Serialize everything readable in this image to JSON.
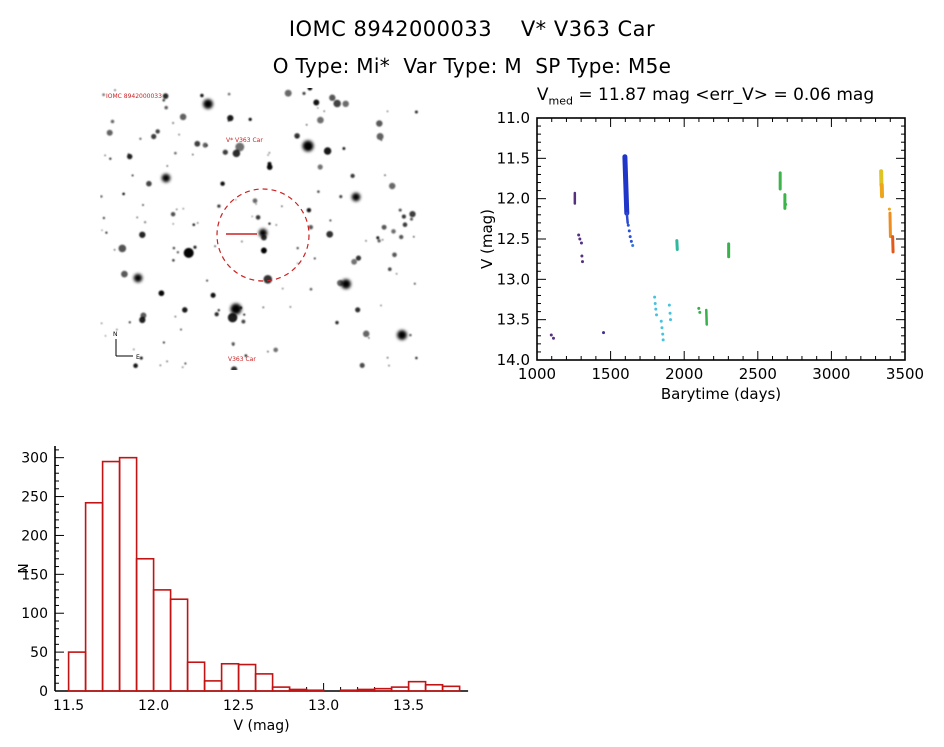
{
  "header": {
    "title": "IOMC 8942000033    V* V363 Car",
    "subtitle": "O Type: Mi*  Var Type: M  SP Type: M5e"
  },
  "finder": {
    "label_top_left": "IOMC 8942000033",
    "label_target": "V* V363 Car",
    "label_bottom": "V363 Car",
    "compass_n": "N",
    "compass_e": "E",
    "circle_color": "#cc2222",
    "seed": 20,
    "star_count": 175,
    "large_stars": [
      [
        66,
        90
      ],
      [
        108,
        16
      ],
      [
        136,
        221
      ],
      [
        256,
        109
      ],
      [
        302,
        247
      ],
      [
        208,
        58
      ],
      [
        38,
        190
      ],
      [
        246,
        196
      ]
    ]
  },
  "chart_data": [
    {
      "type": "scatter",
      "title_v": "V",
      "title_sub": "med",
      "title_rest": " = 11.87 mag <err_V> = 0.06 mag",
      "xlabel": "Barytime (days)",
      "ylabel": "V (mag)",
      "xlim": [
        1000,
        3500
      ],
      "ylim_top": 11.0,
      "ylim_bottom": 14.0,
      "xticks": [
        1000,
        1500,
        2000,
        2500,
        3000,
        3500
      ],
      "yticks": [
        "11.0",
        "11.5",
        "12.0",
        "12.5",
        "13.0",
        "13.5",
        "14.0"
      ],
      "x_minor_step": 100,
      "y_minor_step": 0.1,
      "segments": [
        {
          "x1": 1597,
          "y1": 11.48,
          "x2": 1610,
          "y2": 12.18,
          "c": "#2036c8",
          "w": 5
        },
        {
          "x1": 1610,
          "y1": 12.18,
          "x2": 1616,
          "y2": 12.3,
          "c": "#2a48d0",
          "w": 2.5
        },
        {
          "x1": 1257,
          "y1": 11.93,
          "x2": 1257,
          "y2": 12.06,
          "c": "#55307f",
          "w": 2.5
        },
        {
          "x1": 1950,
          "y1": 12.52,
          "x2": 1953,
          "y2": 12.63,
          "c": "#2eb89e",
          "w": 3
        },
        {
          "x1": 2150,
          "y1": 13.38,
          "x2": 2153,
          "y2": 13.56,
          "c": "#38b04c",
          "w": 2.5
        },
        {
          "x1": 2302,
          "y1": 12.56,
          "x2": 2302,
          "y2": 12.72,
          "c": "#38b04c",
          "w": 3
        },
        {
          "x1": 2652,
          "y1": 11.68,
          "x2": 2652,
          "y2": 11.88,
          "c": "#3cb44a",
          "w": 3
        },
        {
          "x1": 2684,
          "y1": 11.95,
          "x2": 2684,
          "y2": 12.12,
          "c": "#3cb44a",
          "w": 3
        },
        {
          "x1": 3338,
          "y1": 11.66,
          "x2": 3340,
          "y2": 11.83,
          "c": "#ddc422",
          "w": 4
        },
        {
          "x1": 3342,
          "y1": 11.83,
          "x2": 3344,
          "y2": 11.97,
          "c": "#eda61b",
          "w": 4
        },
        {
          "x1": 3398,
          "y1": 12.18,
          "x2": 3401,
          "y2": 12.47,
          "c": "#ee8d1d",
          "w": 3
        },
        {
          "x1": 3416,
          "y1": 12.47,
          "x2": 3419,
          "y2": 12.66,
          "c": "#e2591c",
          "w": 3
        }
      ],
      "points": [
        {
          "x": 1097,
          "y": 13.69,
          "c": "#55307f"
        },
        {
          "x": 1112,
          "y": 13.73,
          "c": "#55307f"
        },
        {
          "x": 1283,
          "y": 12.45,
          "c": "#55307f"
        },
        {
          "x": 1291,
          "y": 12.5,
          "c": "#55307f"
        },
        {
          "x": 1302,
          "y": 12.55,
          "c": "#55307f"
        },
        {
          "x": 1305,
          "y": 12.71,
          "c": "#55307f"
        },
        {
          "x": 1309,
          "y": 12.78,
          "c": "#55307f"
        },
        {
          "x": 1452,
          "y": 13.66,
          "c": "#3d2d8f"
        },
        {
          "x": 1620,
          "y": 12.33,
          "c": "#2a52d4"
        },
        {
          "x": 1627,
          "y": 12.4,
          "c": "#2a52d4"
        },
        {
          "x": 1633,
          "y": 12.47,
          "c": "#2a52d4"
        },
        {
          "x": 1641,
          "y": 12.53,
          "c": "#2a52d4"
        },
        {
          "x": 1650,
          "y": 12.58,
          "c": "#3579dc"
        },
        {
          "x": 1799,
          "y": 13.22,
          "c": "#47c3de"
        },
        {
          "x": 1803,
          "y": 13.3,
          "c": "#47c3de"
        },
        {
          "x": 1807,
          "y": 13.37,
          "c": "#47c3de"
        },
        {
          "x": 1812,
          "y": 13.44,
          "c": "#47c3de"
        },
        {
          "x": 1844,
          "y": 13.52,
          "c": "#47c3de"
        },
        {
          "x": 1849,
          "y": 13.6,
          "c": "#47c3de"
        },
        {
          "x": 1854,
          "y": 13.68,
          "c": "#47c3de"
        },
        {
          "x": 1857,
          "y": 13.75,
          "c": "#47c3de"
        },
        {
          "x": 1899,
          "y": 13.32,
          "c": "#47c3de"
        },
        {
          "x": 1904,
          "y": 13.42,
          "c": "#47c3de"
        },
        {
          "x": 1907,
          "y": 13.5,
          "c": "#47c3de"
        },
        {
          "x": 2099,
          "y": 13.36,
          "c": "#38b04c"
        },
        {
          "x": 2106,
          "y": 13.41,
          "c": "#38b04c"
        },
        {
          "x": 2689,
          "y": 12.07,
          "c": "#3cb44a"
        },
        {
          "x": 3394,
          "y": 12.13,
          "c": "#eda61b"
        }
      ]
    },
    {
      "type": "bar",
      "xlabel": "V (mag)",
      "ylabel": "N",
      "bin_start": 11.5,
      "bin_width": 0.1,
      "values": [
        50,
        242,
        295,
        300,
        170,
        130,
        118,
        37,
        13,
        35,
        34,
        22,
        5,
        2,
        1,
        0,
        1,
        2,
        3,
        5,
        12,
        8,
        6
      ],
      "xticks": [
        "11.5",
        "12.0",
        "12.5",
        "13.0",
        "13.5"
      ],
      "yticks": [
        0,
        50,
        100,
        150,
        200,
        250,
        300
      ],
      "x_minor_step": 0.1,
      "y_minor_step": 10,
      "xlim": [
        11.42,
        13.85
      ],
      "ylim": [
        0,
        315
      ],
      "bar_color": "#c21414"
    }
  ]
}
